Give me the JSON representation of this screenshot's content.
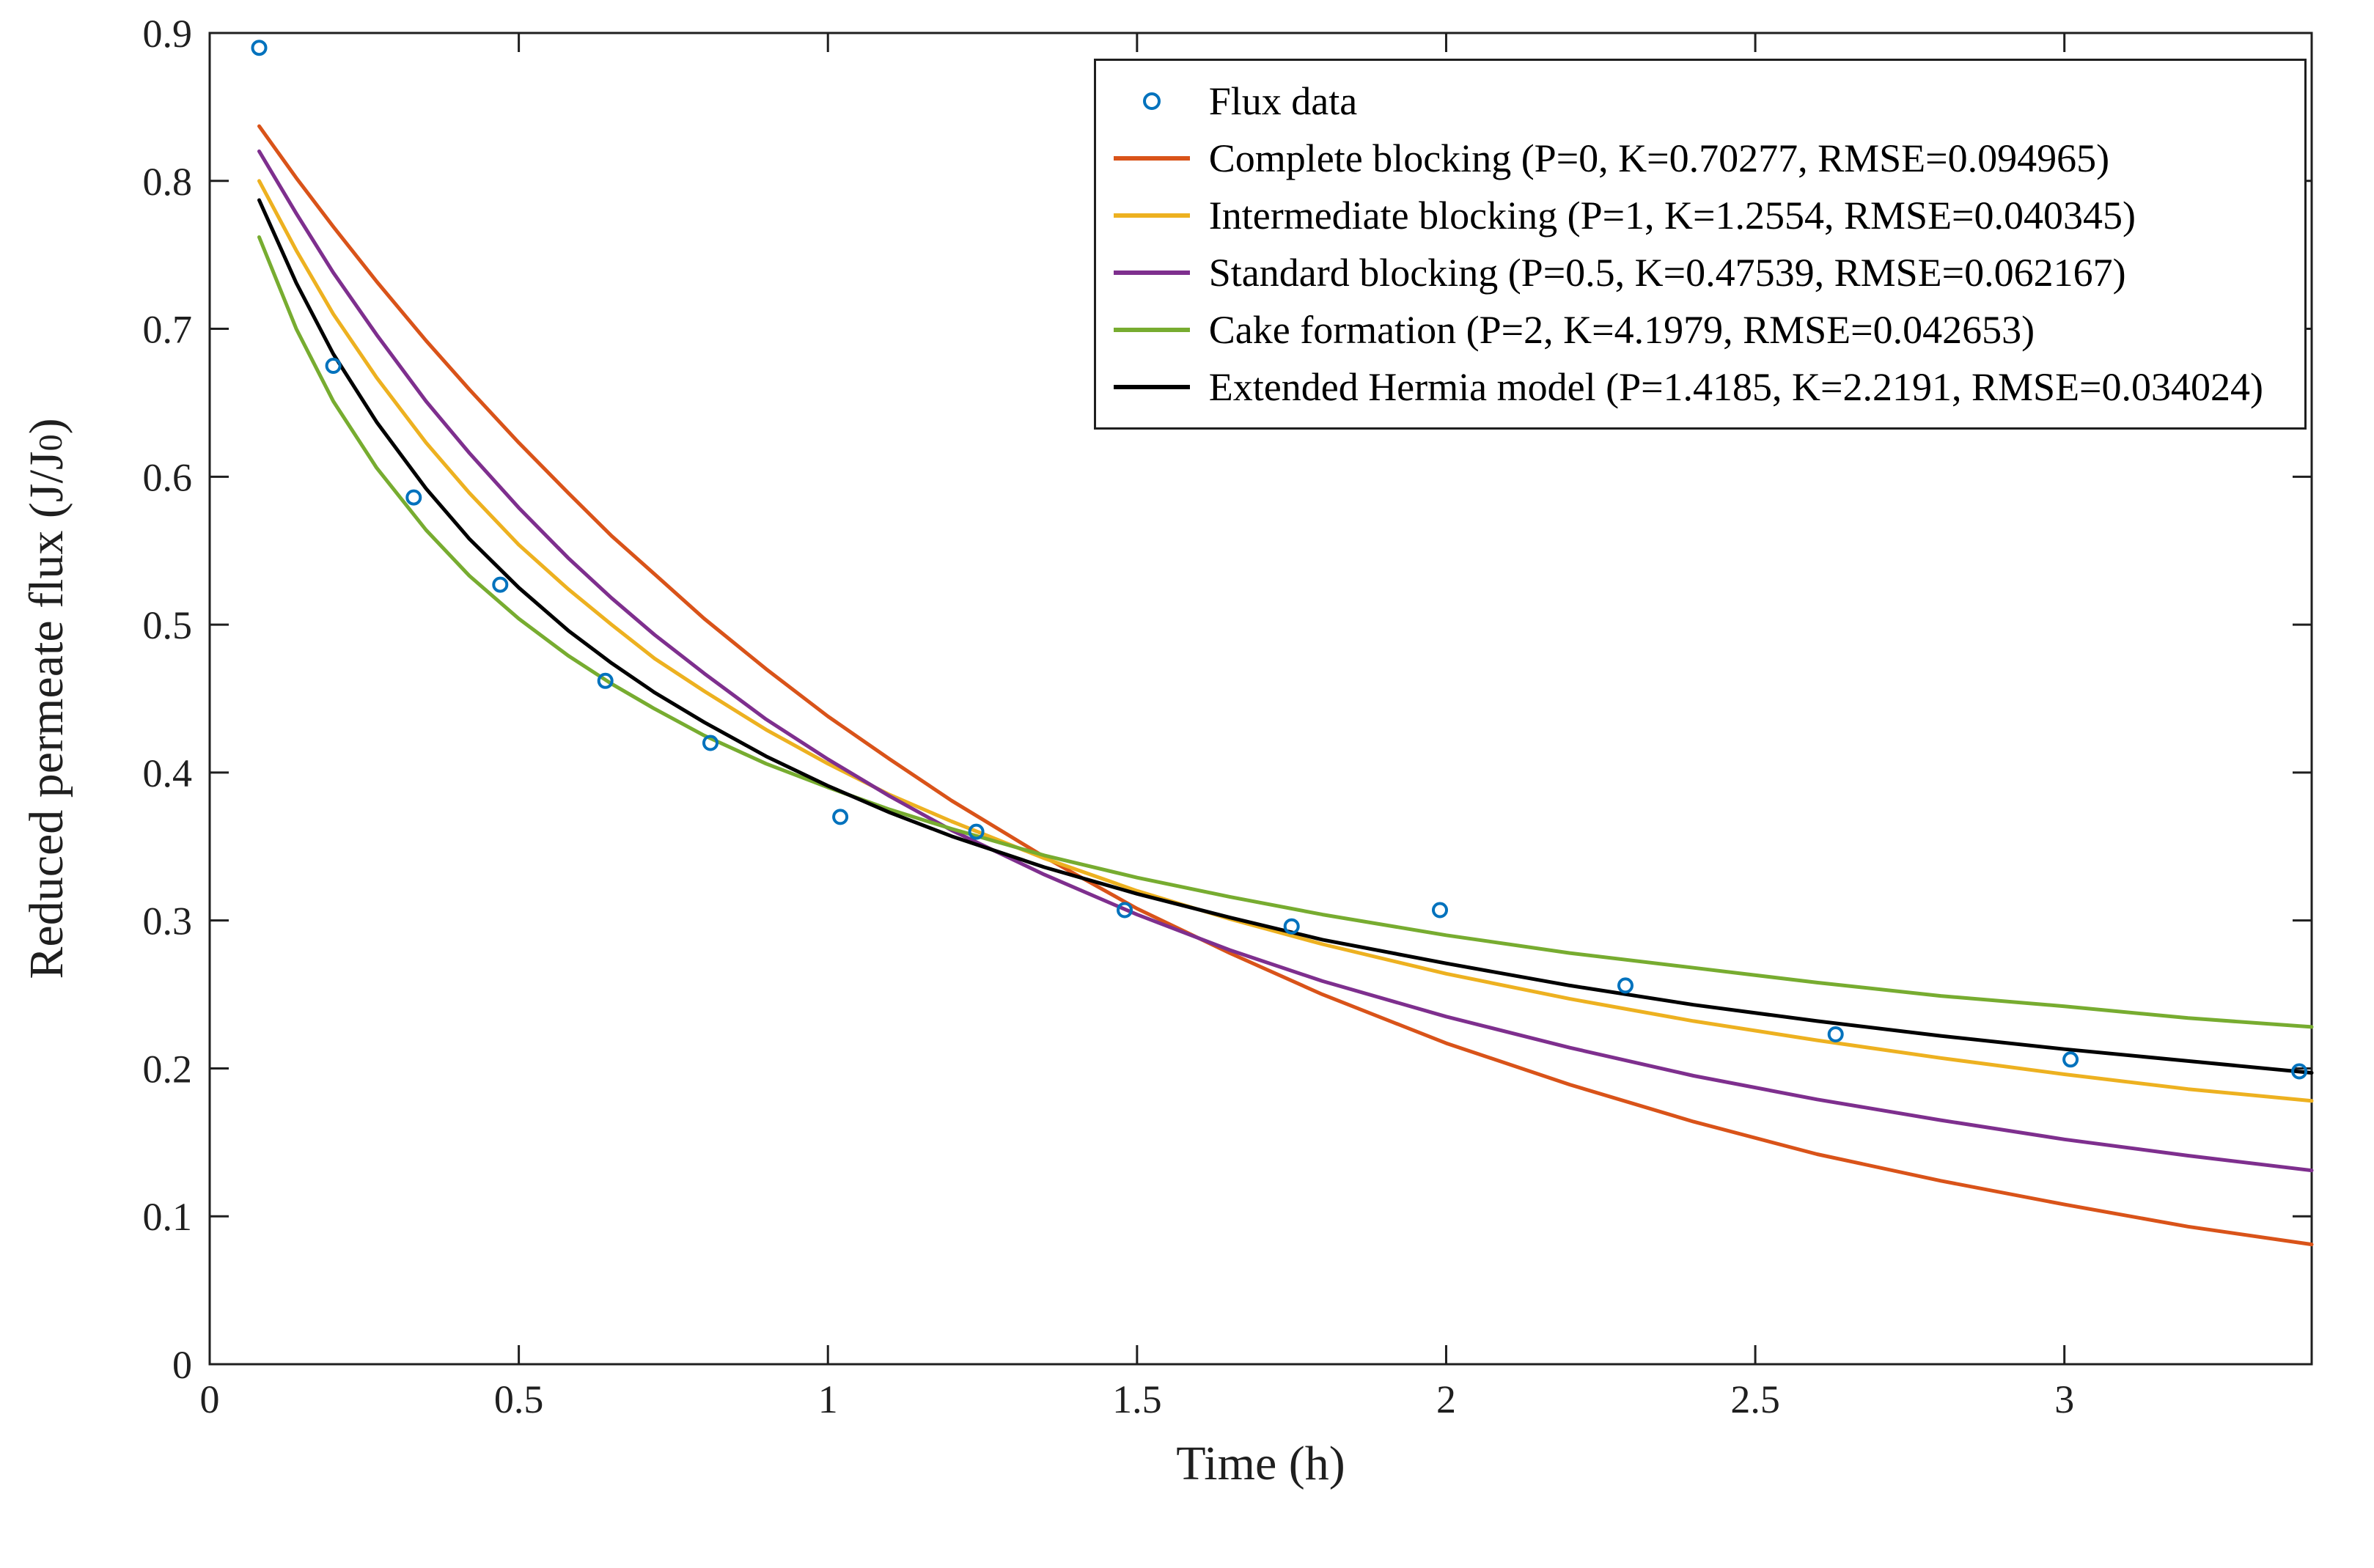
{
  "figure": {
    "background": "#ffffff",
    "axes_color": "#1f1f1f"
  },
  "chart_data": {
    "type": "scatter+line",
    "title": "",
    "xlabel": "Time (h)",
    "ylabel_pre": "Reduced permeate flux (J/J",
    "ylabel_sub": "0",
    "ylabel_post": ")",
    "xlim": [
      0,
      3.4
    ],
    "ylim": [
      0,
      0.9
    ],
    "x_ticks": [
      0,
      0.5,
      1,
      1.5,
      2,
      2.5,
      3
    ],
    "x_tick_labels": [
      "0",
      "0.5",
      "1",
      "1.5",
      "2",
      "2.5",
      "3"
    ],
    "y_ticks": [
      0,
      0.1,
      0.2,
      0.3,
      0.4,
      0.5,
      0.6,
      0.7,
      0.8,
      0.9
    ],
    "y_tick_labels": [
      "0",
      "0.1",
      "0.2",
      "0.3",
      "0.4",
      "0.5",
      "0.6",
      "0.7",
      "0.8",
      "0.9"
    ],
    "grid": false,
    "legend": {
      "position": "northeast",
      "border": true
    },
    "scatter": {
      "name": "Flux data",
      "color": "#0072BD",
      "marker": "o",
      "x": [
        0.08,
        0.2,
        0.33,
        0.47,
        0.64,
        0.81,
        1.02,
        1.24,
        1.48,
        1.75,
        1.99,
        2.29,
        2.63,
        3.01,
        3.38
      ],
      "y": [
        0.89,
        0.675,
        0.586,
        0.527,
        0.462,
        0.42,
        0.37,
        0.36,
        0.307,
        0.296,
        0.307,
        0.256,
        0.223,
        0.206,
        0.198
      ]
    },
    "curve_t": [
      0.08,
      0.14,
      0.2,
      0.27,
      0.35,
      0.42,
      0.5,
      0.58,
      0.65,
      0.72,
      0.8,
      0.9,
      1.0,
      1.1,
      1.2,
      1.35,
      1.5,
      1.65,
      1.8,
      2.0,
      2.2,
      2.4,
      2.6,
      2.8,
      3.0,
      3.2,
      3.4
    ],
    "series": [
      {
        "name": "Complete blocking (P=0, K=0.70277, RMSE=0.094965)",
        "P": 0,
        "K": 0.70277,
        "RMSE": 0.094965,
        "color": "#D95319",
        "values": [
          0.837,
          0.802,
          0.769,
          0.732,
          0.692,
          0.659,
          0.623,
          0.589,
          0.56,
          0.534,
          0.504,
          0.47,
          0.438,
          0.409,
          0.381,
          0.343,
          0.308,
          0.278,
          0.25,
          0.217,
          0.189,
          0.164,
          0.142,
          0.124,
          0.108,
          0.093,
          0.081
        ]
      },
      {
        "name": "Intermediate blocking (P=1, K=1.2554, RMSE=0.040345)",
        "P": 1,
        "K": 1.2554,
        "RMSE": 0.040345,
        "color": "#EDB120",
        "values": [
          0.8,
          0.753,
          0.71,
          0.667,
          0.623,
          0.589,
          0.554,
          0.524,
          0.5,
          0.477,
          0.455,
          0.429,
          0.406,
          0.385,
          0.367,
          0.342,
          0.32,
          0.301,
          0.284,
          0.264,
          0.247,
          0.232,
          0.219,
          0.207,
          0.196,
          0.186,
          0.178
        ]
      },
      {
        "name": "Standard blocking (P=0.5, K=0.47539, RMSE=0.062167)",
        "P": 0.5,
        "K": 0.47539,
        "RMSE": 0.062167,
        "color": "#7E2F8E",
        "values": [
          0.82,
          0.778,
          0.738,
          0.696,
          0.651,
          0.616,
          0.579,
          0.545,
          0.518,
          0.493,
          0.467,
          0.436,
          0.409,
          0.384,
          0.361,
          0.331,
          0.304,
          0.28,
          0.259,
          0.235,
          0.214,
          0.195,
          0.179,
          0.165,
          0.152,
          0.141,
          0.131
        ]
      },
      {
        "name": "Cake formation (P=2, K=4.1979, RMSE=0.042653)",
        "P": 2,
        "K": 4.1979,
        "RMSE": 0.042653,
        "color": "#77AC30",
        "values": [
          0.762,
          0.7,
          0.651,
          0.606,
          0.564,
          0.533,
          0.504,
          0.479,
          0.46,
          0.443,
          0.425,
          0.406,
          0.39,
          0.375,
          0.362,
          0.344,
          0.329,
          0.316,
          0.304,
          0.29,
          0.278,
          0.268,
          0.258,
          0.249,
          0.242,
          0.234,
          0.228
        ]
      },
      {
        "name": "Extended Hermia model (P=1.4185, K=2.2191, RMSE=0.034024)",
        "P": 1.4185,
        "K": 2.2191,
        "RMSE": 0.034024,
        "color": "#000000",
        "values": [
          0.787,
          0.731,
          0.683,
          0.637,
          0.592,
          0.558,
          0.525,
          0.496,
          0.474,
          0.454,
          0.434,
          0.411,
          0.391,
          0.373,
          0.357,
          0.336,
          0.318,
          0.302,
          0.287,
          0.271,
          0.256,
          0.243,
          0.232,
          0.222,
          0.213,
          0.205,
          0.197
        ]
      }
    ]
  }
}
